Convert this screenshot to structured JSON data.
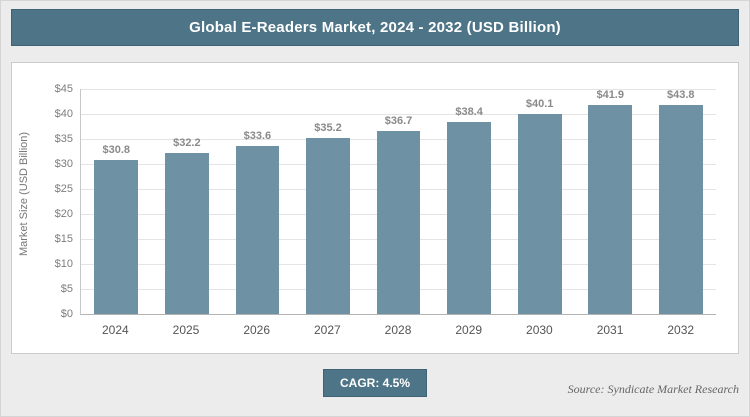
{
  "header": {
    "title": "Global E-Readers Market, 2024 - 2032 (USD Billion)"
  },
  "chart_data": {
    "type": "bar",
    "title": "Global E-Readers Market, 2024 - 2032 (USD Billion)",
    "categories": [
      "2024",
      "2025",
      "2026",
      "2027",
      "2028",
      "2029",
      "2030",
      "2031",
      "2032"
    ],
    "values": [
      30.8,
      32.2,
      33.6,
      35.2,
      36.7,
      38.4,
      40.1,
      41.9,
      43.8
    ],
    "value_labels": [
      "$30.8",
      "$32.2",
      "$33.6",
      "$35.2",
      "$36.7",
      "$38.4",
      "$40.1",
      "$41.9",
      "$43.8"
    ],
    "xlabel": "",
    "ylabel": "Market Size (USD Billion)",
    "ylim": [
      0,
      45
    ],
    "ytick_step": 5,
    "ytick_labels": [
      "$0",
      "$5",
      "$10",
      "$15",
      "$20",
      "$25",
      "$30",
      "$35",
      "$40",
      "$45"
    ],
    "grid": true,
    "legend": false,
    "bar_color": "#6e92a3"
  },
  "footer": {
    "cagr_label": "CAGR: 4.5%",
    "source": "Source: Syndicate Market Research"
  },
  "colors": {
    "accent": "#4d7587",
    "bar": "#6e92a3",
    "page_background": "#ececec",
    "plot_background": "#ffffff",
    "gridline": "#e4e4e4",
    "value_label_text": "#8a8a8a"
  }
}
